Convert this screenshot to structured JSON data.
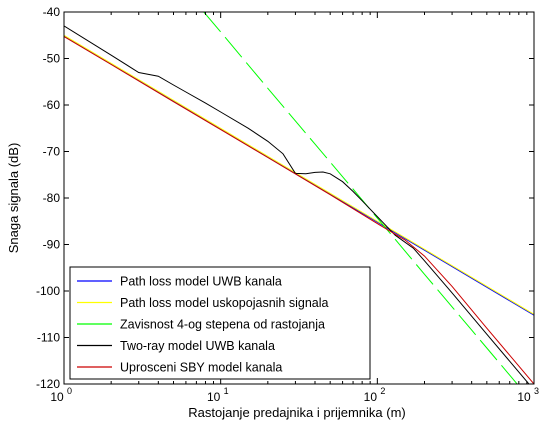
{
  "chart_data": {
    "type": "line",
    "title": "",
    "xlabel": "Rastojanje predajnika i prijemnika (m)",
    "ylabel": "Snaga signala (dB)",
    "xscale": "log",
    "xlim": [
      1,
      1000
    ],
    "ylim": [
      -120,
      -40
    ],
    "grid": false,
    "legend_position": "bottom-left",
    "xticks": [
      1,
      10,
      100,
      1000
    ],
    "xtick_labels": [
      {
        "base": "10",
        "exp": "0"
      },
      {
        "base": "10",
        "exp": "1"
      },
      {
        "base": "10",
        "exp": "2"
      },
      {
        "base": "10",
        "exp": "3"
      }
    ],
    "yticks": [
      -40,
      -50,
      -60,
      -70,
      -80,
      -90,
      -100,
      -110,
      -120
    ],
    "ytick_labels": [
      "-40",
      "-50",
      "-60",
      "-70",
      "-80",
      "-90",
      "-100",
      "-110",
      "-120"
    ],
    "series": [
      {
        "name": "Path loss model UWB kanala",
        "color": "#0000ff",
        "style": "solid",
        "x": [
          1,
          1000
        ],
        "y": [
          -45.2,
          -105.2
        ]
      },
      {
        "name": "Path loss model uskopojasnih signala",
        "color": "#ffff00",
        "style": "solid",
        "x": [
          1,
          1000
        ],
        "y": [
          -45.0,
          -105.0
        ]
      },
      {
        "name": "Zavisnost 4-og stepena od rastojanja",
        "color": "#00ff00",
        "style": "dashed",
        "x": [
          7.8,
          10,
          20,
          40,
          80,
          100,
          200,
          400,
          1000
        ],
        "y": [
          -40.0,
          -44.3,
          -56.4,
          -68.4,
          -80.4,
          -84.3,
          -96.4,
          -108.4,
          -124.3
        ]
      },
      {
        "name": "Two-ray model UWB kanala",
        "color": "#000000",
        "style": "solid",
        "x": [
          1,
          2,
          3,
          4,
          5,
          6,
          8,
          10,
          15,
          20,
          25,
          30,
          35,
          40,
          45,
          50,
          60,
          70,
          80,
          100,
          130,
          170,
          200,
          300,
          500,
          1000
        ],
        "y": [
          -43.0,
          -49.3,
          -53.0,
          -53.8,
          -55.7,
          -57.2,
          -59.6,
          -61.5,
          -65.0,
          -67.8,
          -70.5,
          -74.7,
          -74.8,
          -74.5,
          -74.4,
          -74.8,
          -76.5,
          -78.6,
          -80.6,
          -84.0,
          -88.0,
          -90.8,
          -93.5,
          -100.4,
          -109.3,
          -121.3
        ]
      },
      {
        "name": "Uprosceni SBY model kanala",
        "color": "#cc0000",
        "style": "solid",
        "x": [
          1,
          2,
          5,
          10,
          20,
          50,
          100,
          150,
          200,
          300,
          500,
          1000
        ],
        "y": [
          -45.3,
          -51.3,
          -59.3,
          -65.3,
          -71.3,
          -79.3,
          -85.5,
          -89.0,
          -92.5,
          -99.0,
          -108.0,
          -120.0
        ]
      }
    ]
  }
}
